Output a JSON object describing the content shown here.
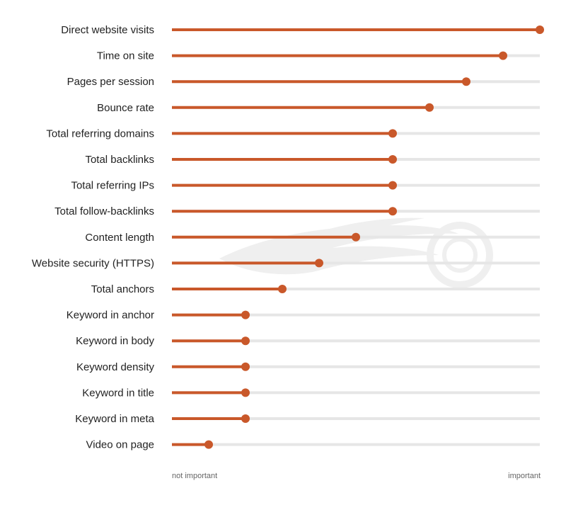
{
  "chart_data": {
    "type": "lollipop",
    "title": "",
    "xlabel": "",
    "ylabel": "",
    "xlim": [
      0,
      1
    ],
    "axis_min_label": "not important",
    "axis_max_label": "important",
    "categories": [
      "Direct website visits",
      "Time on site",
      "Pages per session",
      "Bounce rate",
      "Total referring domains",
      "Total backlinks",
      "Total referring IPs",
      "Total follow-backlinks",
      "Content length",
      "Website security (HTTPS)",
      "Total anchors",
      "Keyword in anchor",
      "Keyword in body",
      "Keyword density",
      "Keyword in title",
      "Keyword in meta",
      "Video on page"
    ],
    "values": [
      1.0,
      0.9,
      0.8,
      0.7,
      0.6,
      0.6,
      0.6,
      0.6,
      0.5,
      0.4,
      0.3,
      0.2,
      0.2,
      0.2,
      0.2,
      0.2,
      0.1
    ],
    "colors": {
      "accent": "#C9582A",
      "track": "#E6E6E6",
      "watermark": "#EFEFEF"
    },
    "grid": false,
    "legend": "none"
  }
}
